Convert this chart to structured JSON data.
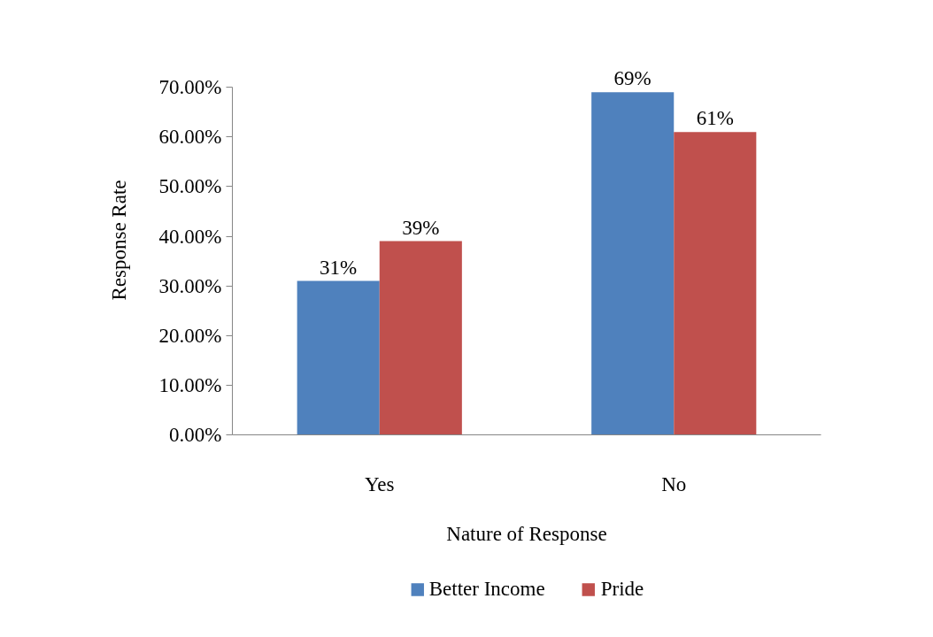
{
  "chart_data": {
    "type": "bar",
    "xlabel": "Nature of Response",
    "ylabel": "Response Rate",
    "categories": [
      "Yes",
      "No"
    ],
    "series": [
      {
        "name": "Better Income",
        "color": "#4f81bd",
        "values": [
          31,
          69
        ],
        "value_labels": [
          "31%",
          "69%"
        ]
      },
      {
        "name": "Pride",
        "color": "#c0504d",
        "values": [
          39,
          61
        ],
        "value_labels": [
          "39%",
          "61%"
        ]
      }
    ],
    "ylim": [
      0,
      70
    ],
    "yticks": [
      {
        "value": 0,
        "label": "0.00%"
      },
      {
        "value": 10,
        "label": "10.00%"
      },
      {
        "value": 20,
        "label": "20.00%"
      },
      {
        "value": 30,
        "label": "30.00%"
      },
      {
        "value": 40,
        "label": "40.00%"
      },
      {
        "value": 50,
        "label": "50.00%"
      },
      {
        "value": 60,
        "label": "60.00%"
      },
      {
        "value": 70,
        "label": "70.00%"
      }
    ],
    "legend": "bottom"
  }
}
